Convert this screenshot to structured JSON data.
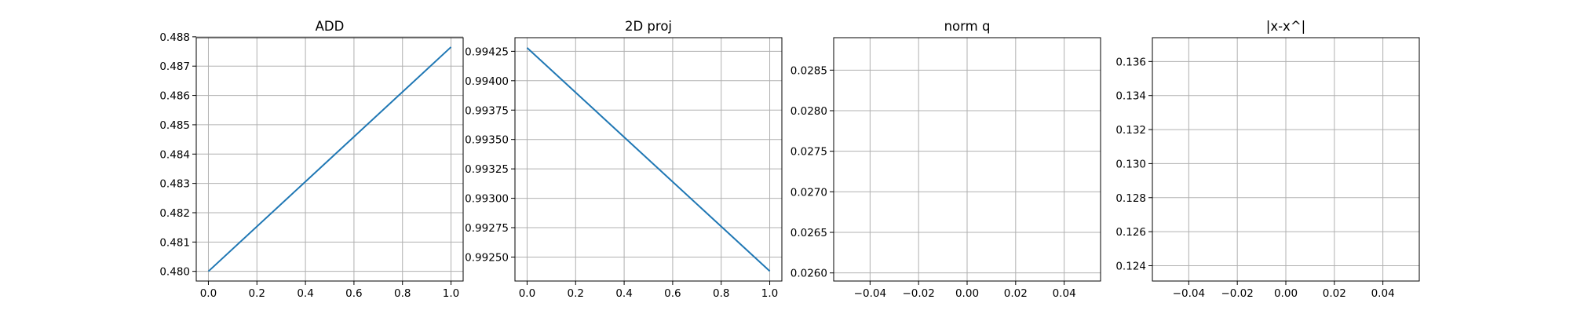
{
  "chart_data": [
    {
      "type": "line",
      "title": "ADD",
      "xlabel": "",
      "ylabel": "",
      "grid": true,
      "xlim": [
        -0.05,
        1.05
      ],
      "ylim": [
        0.47967,
        0.48797
      ],
      "xticks": [
        0.0,
        0.2,
        0.4,
        0.6,
        0.8,
        1.0
      ],
      "xtick_labels": [
        "0.0",
        "0.2",
        "0.4",
        "0.6",
        "0.8",
        "1.0"
      ],
      "yticks": [
        0.48,
        0.481,
        0.482,
        0.483,
        0.484,
        0.485,
        0.486,
        0.487,
        0.488
      ],
      "ytick_labels": [
        "0.480",
        "0.481",
        "0.482",
        "0.483",
        "0.484",
        "0.485",
        "0.486",
        "0.487",
        "0.488"
      ],
      "series": [
        {
          "x": [
            0.0,
            1.0
          ],
          "y": [
            0.48,
            0.48765
          ],
          "color": "#1f77b4"
        }
      ]
    },
    {
      "type": "line",
      "title": "2D proj",
      "xlabel": "",
      "ylabel": "",
      "grid": true,
      "xlim": [
        -0.05,
        1.05
      ],
      "ylim": [
        0.992296,
        0.994366
      ],
      "xticks": [
        0.0,
        0.2,
        0.4,
        0.6,
        0.8,
        1.0
      ],
      "xtick_labels": [
        "0.0",
        "0.2",
        "0.4",
        "0.6",
        "0.8",
        "1.0"
      ],
      "yticks": [
        0.9925,
        0.99275,
        0.993,
        0.99325,
        0.9935,
        0.99375,
        0.994,
        0.99425
      ],
      "ytick_labels": [
        "0.99250",
        "0.99275",
        "0.99300",
        "0.99325",
        "0.99350",
        "0.99375",
        "0.99400",
        "0.99425"
      ],
      "series": [
        {
          "x": [
            0.0,
            1.0
          ],
          "y": [
            0.99428,
            0.99238
          ],
          "color": "#1f77b4"
        }
      ]
    },
    {
      "type": "line",
      "title": "norm q",
      "xlabel": "",
      "ylabel": "",
      "grid": true,
      "xlim": [
        -0.055,
        0.055
      ],
      "ylim": [
        0.0259,
        0.0289
      ],
      "xticks": [
        -0.04,
        -0.02,
        0.0,
        0.02,
        0.04
      ],
      "xtick_labels": [
        "−0.04",
        "−0.02",
        "0.00",
        "0.02",
        "0.04"
      ],
      "yticks": [
        0.026,
        0.0265,
        0.027,
        0.0275,
        0.028,
        0.0285
      ],
      "ytick_labels": [
        "0.0260",
        "0.0265",
        "0.0270",
        "0.0275",
        "0.0280",
        "0.0285"
      ],
      "series": []
    },
    {
      "type": "line",
      "title": "|x-x^|",
      "xlabel": "",
      "ylabel": "",
      "grid": true,
      "xlim": [
        -0.055,
        0.055
      ],
      "ylim": [
        0.1231,
        0.1374
      ],
      "xticks": [
        -0.04,
        -0.02,
        0.0,
        0.02,
        0.04
      ],
      "xtick_labels": [
        "−0.04",
        "−0.02",
        "0.00",
        "0.02",
        "0.04"
      ],
      "yticks": [
        0.124,
        0.126,
        0.128,
        0.13,
        0.132,
        0.134,
        0.136
      ],
      "ytick_labels": [
        "0.124",
        "0.126",
        "0.128",
        "0.130",
        "0.132",
        "0.134",
        "0.136"
      ],
      "series": []
    }
  ]
}
